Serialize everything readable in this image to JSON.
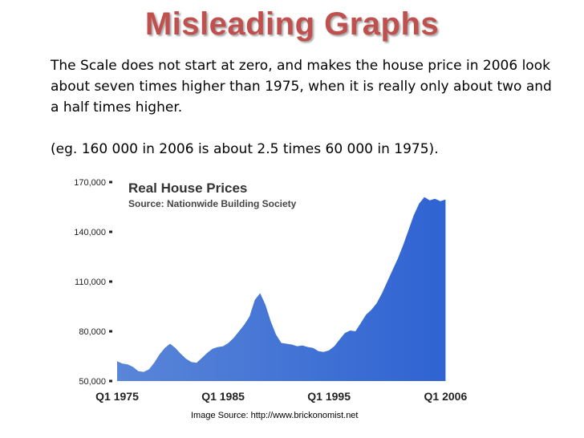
{
  "slide": {
    "title": "Misleading Graphs",
    "paragraph1": "The Scale does not start at zero, and makes the house price in 2006 look about seven times higher than 1975, when it is really only about two and a half times higher.",
    "paragraph2": "(eg. 160 000 in 2006 is about 2.5 times 60 000 in 1975).",
    "image_source": "Image Source: http://www.brickonomist.net"
  },
  "chart_data": {
    "type": "area",
    "title": "Real House Prices",
    "subtitle": "Source: Nationwide Building Society",
    "xlabel": "",
    "ylabel": "",
    "ylim": [
      50000,
      170000
    ],
    "xlim": [
      1975,
      2006.5
    ],
    "yticks": [
      50000,
      80000,
      110000,
      140000,
      170000
    ],
    "ytick_labels": [
      "50,000",
      "80,000",
      "110,000",
      "140,000",
      "170,000"
    ],
    "xticks": [
      1975,
      1985,
      1995,
      2006
    ],
    "xtick_labels": [
      "Q1 1975",
      "Q1 1985",
      "Q1 1995",
      "Q1 2006"
    ],
    "grid": false,
    "fill_color": "#3f6fcc",
    "series": [
      {
        "x": [
          1975,
          1975.5,
          1976,
          1976.5,
          1977,
          1977.5,
          1978,
          1978.5,
          1979,
          1979.5,
          1980,
          1980.5,
          1981,
          1981.5,
          1982,
          1982.5,
          1983,
          1983.5,
          1984,
          1984.5,
          1985,
          1985.5,
          1986,
          1986.5,
          1987,
          1987.5,
          1988,
          1988.5,
          1989,
          1989.5,
          1990,
          1990.5,
          1991,
          1991.5,
          1992,
          1992.5,
          1993,
          1993.5,
          1994,
          1994.5,
          1995,
          1995.5,
          1996,
          1996.5,
          1997,
          1997.5,
          1998,
          1998.5,
          1999,
          1999.5,
          2000,
          2000.5,
          2001,
          2001.5,
          2002,
          2002.5,
          2003,
          2003.5,
          2004,
          2004.5,
          2005,
          2005.5,
          2006
        ],
        "values": [
          62000,
          60500,
          60000,
          58500,
          56000,
          55500,
          57000,
          61000,
          66000,
          70000,
          72500,
          70000,
          66500,
          63500,
          61500,
          61000,
          64000,
          67000,
          69500,
          70500,
          71000,
          73000,
          76000,
          80000,
          84000,
          89000,
          99000,
          103000,
          96000,
          86000,
          78000,
          73000,
          72500,
          72000,
          71000,
          71500,
          70500,
          70000,
          68000,
          67500,
          68500,
          71000,
          75000,
          79000,
          80500,
          80000,
          85000,
          90000,
          93000,
          97000,
          103000,
          110000,
          117000,
          124000,
          132000,
          141000,
          150000,
          157000,
          161000,
          159000,
          160000,
          158500,
          159500
        ]
      }
    ]
  }
}
